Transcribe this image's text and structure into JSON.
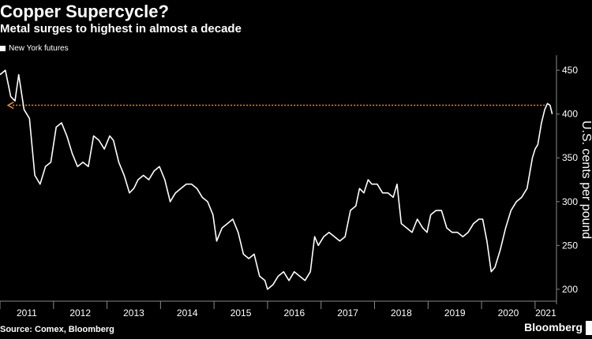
{
  "header": {
    "title": "Copper Supercycle?",
    "subtitle": "Metal surges to highest in almost a decade"
  },
  "footer": {
    "source": "Source: Comex, Bloomberg",
    "brand": "Bloomberg"
  },
  "colors": {
    "background": "#000000",
    "line": "#ffffff",
    "reference_arrow": "#e0912b",
    "axis": "#888888"
  },
  "chart_data": {
    "type": "line",
    "series": [
      {
        "name": "New York futures",
        "points": [
          [
            2011.0,
            445
          ],
          [
            2011.1,
            450
          ],
          [
            2011.2,
            420
          ],
          [
            2011.28,
            415
          ],
          [
            2011.35,
            445
          ],
          [
            2011.45,
            405
          ],
          [
            2011.55,
            395
          ],
          [
            2011.65,
            330
          ],
          [
            2011.75,
            320
          ],
          [
            2011.85,
            340
          ],
          [
            2011.95,
            345
          ],
          [
            2012.05,
            385
          ],
          [
            2012.15,
            390
          ],
          [
            2012.25,
            375
          ],
          [
            2012.35,
            355
          ],
          [
            2012.45,
            340
          ],
          [
            2012.55,
            345
          ],
          [
            2012.65,
            340
          ],
          [
            2012.75,
            375
          ],
          [
            2012.85,
            370
          ],
          [
            2012.95,
            360
          ],
          [
            2013.05,
            375
          ],
          [
            2013.12,
            370
          ],
          [
            2013.22,
            345
          ],
          [
            2013.32,
            330
          ],
          [
            2013.42,
            310
          ],
          [
            2013.5,
            315
          ],
          [
            2013.58,
            325
          ],
          [
            2013.68,
            330
          ],
          [
            2013.78,
            325
          ],
          [
            2013.88,
            335
          ],
          [
            2013.98,
            340
          ],
          [
            2014.08,
            325
          ],
          [
            2014.18,
            300
          ],
          [
            2014.28,
            310
          ],
          [
            2014.38,
            315
          ],
          [
            2014.48,
            320
          ],
          [
            2014.58,
            320
          ],
          [
            2014.68,
            315
          ],
          [
            2014.78,
            305
          ],
          [
            2014.88,
            300
          ],
          [
            2014.98,
            285
          ],
          [
            2015.05,
            255
          ],
          [
            2015.15,
            270
          ],
          [
            2015.25,
            275
          ],
          [
            2015.35,
            280
          ],
          [
            2015.45,
            265
          ],
          [
            2015.55,
            240
          ],
          [
            2015.65,
            235
          ],
          [
            2015.75,
            240
          ],
          [
            2015.85,
            215
          ],
          [
            2015.95,
            210
          ],
          [
            2016.0,
            200
          ],
          [
            2016.1,
            205
          ],
          [
            2016.2,
            215
          ],
          [
            2016.3,
            220
          ],
          [
            2016.4,
            210
          ],
          [
            2016.5,
            220
          ],
          [
            2016.6,
            215
          ],
          [
            2016.7,
            210
          ],
          [
            2016.8,
            220
          ],
          [
            2016.88,
            260
          ],
          [
            2016.95,
            250
          ],
          [
            2017.05,
            260
          ],
          [
            2017.15,
            265
          ],
          [
            2017.25,
            260
          ],
          [
            2017.35,
            255
          ],
          [
            2017.45,
            260
          ],
          [
            2017.55,
            290
          ],
          [
            2017.65,
            295
          ],
          [
            2017.72,
            315
          ],
          [
            2017.8,
            310
          ],
          [
            2017.88,
            325
          ],
          [
            2017.95,
            320
          ],
          [
            2018.05,
            320
          ],
          [
            2018.15,
            310
          ],
          [
            2018.25,
            310
          ],
          [
            2018.35,
            305
          ],
          [
            2018.42,
            320
          ],
          [
            2018.5,
            275
          ],
          [
            2018.6,
            270
          ],
          [
            2018.7,
            265
          ],
          [
            2018.8,
            280
          ],
          [
            2018.9,
            270
          ],
          [
            2018.98,
            265
          ],
          [
            2019.05,
            285
          ],
          [
            2019.15,
            290
          ],
          [
            2019.25,
            290
          ],
          [
            2019.35,
            270
          ],
          [
            2019.45,
            265
          ],
          [
            2019.55,
            265
          ],
          [
            2019.65,
            260
          ],
          [
            2019.75,
            265
          ],
          [
            2019.85,
            275
          ],
          [
            2019.95,
            280
          ],
          [
            2020.02,
            280
          ],
          [
            2020.1,
            255
          ],
          [
            2020.18,
            220
          ],
          [
            2020.25,
            225
          ],
          [
            2020.35,
            245
          ],
          [
            2020.45,
            270
          ],
          [
            2020.55,
            290
          ],
          [
            2020.65,
            300
          ],
          [
            2020.75,
            305
          ],
          [
            2020.85,
            315
          ],
          [
            2020.95,
            350
          ],
          [
            2021.0,
            360
          ],
          [
            2021.05,
            365
          ],
          [
            2021.12,
            390
          ],
          [
            2021.18,
            405
          ],
          [
            2021.23,
            412
          ],
          [
            2021.28,
            410
          ],
          [
            2021.32,
            400
          ]
        ]
      }
    ],
    "reference_line": {
      "value": 410,
      "from_x": 2011.15,
      "to_x": 2021.2
    },
    "xlim": [
      2011.0,
      2021.4
    ],
    "ylim": [
      190,
      460
    ],
    "x_ticks": [
      2011,
      2012,
      2013,
      2014,
      2015,
      2016,
      2017,
      2018,
      2019,
      2020,
      2021
    ],
    "y_ticks": [
      200,
      250,
      300,
      350,
      400,
      450
    ],
    "ylabel": "U.S. cents per pound",
    "xlabel": "",
    "legend_position": "top-left",
    "grid": false
  }
}
